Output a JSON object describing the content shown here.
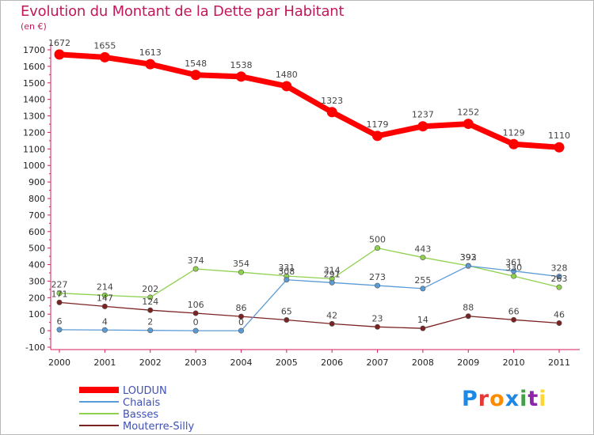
{
  "title": "Evolution du Montant de la Dette par Habitant",
  "unit_label": "(en €)",
  "logo_text": "Proxiti",
  "colors": {
    "title": "#c2185b",
    "axis": "#d81b60",
    "tick_text": "#222222",
    "label_text": "#444444"
  },
  "chart_data": {
    "type": "line",
    "title": "Evolution du Montant de la Dette par Habitant",
    "ylabel": "(en €)",
    "xlabel": "",
    "x": [
      "2000",
      "2001",
      "2002",
      "2003",
      "2004",
      "2005",
      "2006",
      "2007",
      "2008",
      "2009",
      "2010",
      "2011"
    ],
    "ylim": [
      -100,
      1700
    ],
    "yticks": [
      -100,
      0,
      100,
      200,
      300,
      400,
      500,
      600,
      700,
      800,
      900,
      1000,
      1100,
      1200,
      1300,
      1400,
      1500,
      1600,
      1700
    ],
    "grid": false,
    "legend_position": "bottom-left",
    "series": [
      {
        "name": "LOUDUN",
        "color": "#ff0000",
        "values": [
          1672,
          1655,
          1613,
          1548,
          1538,
          1480,
          1323,
          1179,
          1237,
          1252,
          1129,
          1110
        ]
      },
      {
        "name": "Chalais",
        "color": "#5b9bd5",
        "values": [
          6,
          4,
          2,
          0,
          0,
          308,
          291,
          273,
          255,
          392,
          361,
          328
        ]
      },
      {
        "name": "Basses",
        "color": "#8fd14f",
        "values": [
          227,
          214,
          202,
          374,
          354,
          331,
          314,
          500,
          443,
          393,
          330,
          263
        ]
      },
      {
        "name": "Mouterre-Silly",
        "color": "#7b2323",
        "values": [
          171,
          147,
          124,
          106,
          86,
          65,
          42,
          23,
          14,
          88,
          66,
          46
        ]
      }
    ]
  }
}
